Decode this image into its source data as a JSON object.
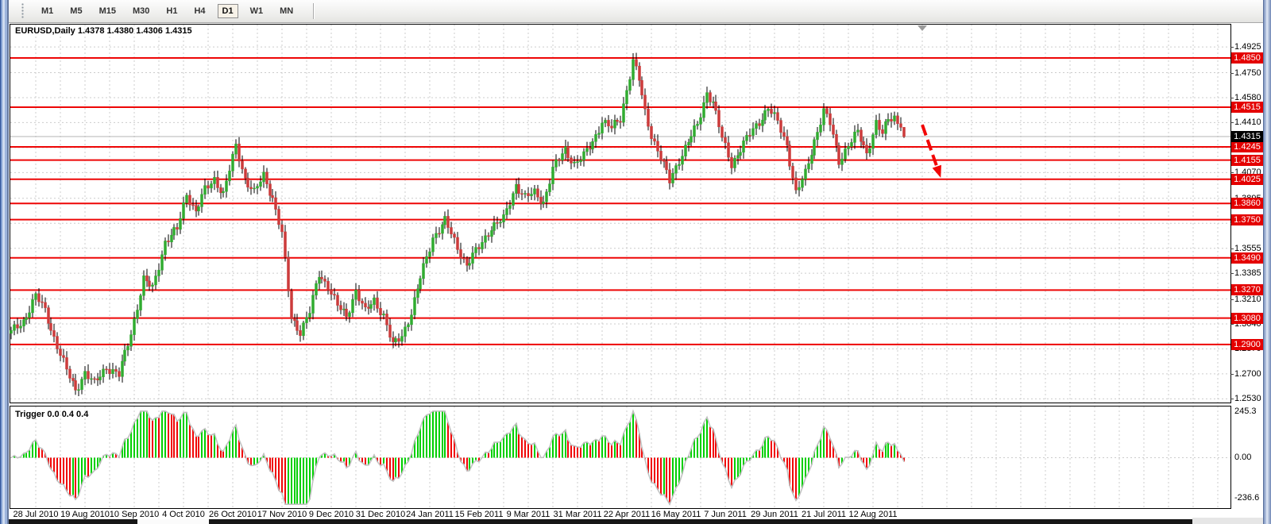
{
  "toolbar": {
    "timeframes": [
      "M1",
      "M5",
      "M15",
      "M30",
      "H1",
      "H4",
      "D1",
      "W1",
      "MN"
    ],
    "active_timeframe": "D1"
  },
  "chart_header": {
    "symbol_label": "EURUSD,Daily",
    "quote_ohlc": "1.4378 1.4380 1.4306 1.4315"
  },
  "chart_data": {
    "type": "candlestick",
    "symbol": "EURUSD",
    "timeframe": "Daily",
    "title": "EURUSD,Daily 1.4378 1.4380 1.4306 1.4315",
    "last_candle": {
      "open": 1.4378,
      "high": 1.438,
      "low": 1.4306,
      "close": 1.4315
    },
    "current_bid": "1.4315",
    "candles_count": 291,
    "bars_per_label": 16,
    "price_path_anchors": [
      [
        0,
        1.298
      ],
      [
        4,
        1.306
      ],
      [
        8,
        1.323
      ],
      [
        11,
        1.313
      ],
      [
        14,
        1.295
      ],
      [
        18,
        1.272
      ],
      [
        21,
        1.259
      ],
      [
        24,
        1.271
      ],
      [
        27,
        1.263
      ],
      [
        31,
        1.275
      ],
      [
        35,
        1.269
      ],
      [
        39,
        1.298
      ],
      [
        43,
        1.334
      ],
      [
        46,
        1.328
      ],
      [
        50,
        1.36
      ],
      [
        54,
        1.368
      ],
      [
        57,
        1.393
      ],
      [
        60,
        1.38
      ],
      [
        63,
        1.395
      ],
      [
        66,
        1.403
      ],
      [
        69,
        1.392
      ],
      [
        73,
        1.425
      ],
      [
        76,
        1.403
      ],
      [
        79,
        1.393
      ],
      [
        82,
        1.405
      ],
      [
        85,
        1.39
      ],
      [
        88,
        1.365
      ],
      [
        91,
        1.308
      ],
      [
        94,
        1.299
      ],
      [
        97,
        1.312
      ],
      [
        100,
        1.338
      ],
      [
        103,
        1.33
      ],
      [
        106,
        1.316
      ],
      [
        109,
        1.309
      ],
      [
        112,
        1.327
      ],
      [
        115,
        1.312
      ],
      [
        118,
        1.32
      ],
      [
        121,
        1.31
      ],
      [
        124,
        1.289
      ],
      [
        127,
        1.296
      ],
      [
        130,
        1.312
      ],
      [
        133,
        1.335
      ],
      [
        137,
        1.363
      ],
      [
        141,
        1.374
      ],
      [
        145,
        1.356
      ],
      [
        148,
        1.344
      ],
      [
        152,
        1.356
      ],
      [
        156,
        1.37
      ],
      [
        160,
        1.375
      ],
      [
        164,
        1.399
      ],
      [
        167,
        1.39
      ],
      [
        170,
        1.393
      ],
      [
        173,
        1.387
      ],
      [
        176,
        1.409
      ],
      [
        180,
        1.423
      ],
      [
        183,
        1.413
      ],
      [
        186,
        1.418
      ],
      [
        189,
        1.428
      ],
      [
        192,
        1.442
      ],
      [
        195,
        1.437
      ],
      [
        198,
        1.444
      ],
      [
        202,
        1.483
      ],
      [
        204,
        1.47
      ],
      [
        206,
        1.448
      ],
      [
        208,
        1.433
      ],
      [
        211,
        1.417
      ],
      [
        214,
        1.401
      ],
      [
        217,
        1.416
      ],
      [
        220,
        1.428
      ],
      [
        223,
        1.439
      ],
      [
        226,
        1.462
      ],
      [
        228,
        1.455
      ],
      [
        231,
        1.43
      ],
      [
        234,
        1.413
      ],
      [
        237,
        1.423
      ],
      [
        240,
        1.433
      ],
      [
        243,
        1.442
      ],
      [
        246,
        1.451
      ],
      [
        249,
        1.441
      ],
      [
        252,
        1.426
      ],
      [
        255,
        1.393
      ],
      [
        258,
        1.406
      ],
      [
        261,
        1.429
      ],
      [
        264,
        1.449
      ],
      [
        266,
        1.44
      ],
      [
        269,
        1.415
      ],
      [
        272,
        1.426
      ],
      [
        275,
        1.434
      ],
      [
        278,
        1.42
      ],
      [
        281,
        1.441
      ],
      [
        283,
        1.433
      ],
      [
        285,
        1.443
      ],
      [
        287,
        1.445
      ],
      [
        289,
        1.4378
      ],
      [
        290,
        1.4315
      ]
    ],
    "x_labels": [
      "28 Jul 2010",
      "19 Aug 2010",
      "10 Sep 2010",
      "4 Oct 2010",
      "26 Oct 2010",
      "17 Nov 2010",
      "9 Dec 2010",
      "31 Dec 2010",
      "24 Jan 2011",
      "15 Feb 2011",
      "9 Mar 2011",
      "31 Mar 2011",
      "22 Apr 2011",
      "16 May 2011",
      "7 Jun 2011",
      "29 Jun 2011",
      "21 Jul 2011",
      "12 Aug 2011"
    ],
    "y_ticks": [
      "1.4925",
      "1.4750",
      "1.4580",
      "1.4410",
      "1.4240",
      "1.4070",
      "1.3895",
      "1.3725",
      "1.3555",
      "1.3385",
      "1.3210",
      "1.3040",
      "1.2870",
      "1.2700",
      "1.2530"
    ],
    "red_levels": [
      "1.4850",
      "1.4515",
      "1.4245",
      "1.4155",
      "1.4025",
      "1.3860",
      "1.3750",
      "1.3490",
      "1.3270",
      "1.3080",
      "1.2900"
    ],
    "ylim": [
      "1.2530",
      "1.4925"
    ],
    "grid": true,
    "indicator": {
      "label": "Trigger 0.0 0.4 0.4",
      "scale_max": "245.3",
      "scale_zero": "0.00",
      "scale_min": "-236.6"
    },
    "annotation_arrow": {
      "from_bar": 296,
      "from_price": 1.4395,
      "to_bar": 302,
      "to_price": 1.4035
    },
    "shift_marker_bar": 296,
    "colors": {
      "bull": "#30ac30",
      "bear": "#cc3b3b",
      "wick": "#000000",
      "grid": "#cccccc",
      "red_line": "#ee0606",
      "bid_line": "#b6b6b6",
      "hist_up": "#00cf00",
      "hist_down": "#f00505",
      "envelope": "#c2c2c2",
      "badge_red": "#e40000",
      "badge_black": "#000000",
      "arrow": "#f20606",
      "shift_marker": "#9a9a9a"
    }
  }
}
